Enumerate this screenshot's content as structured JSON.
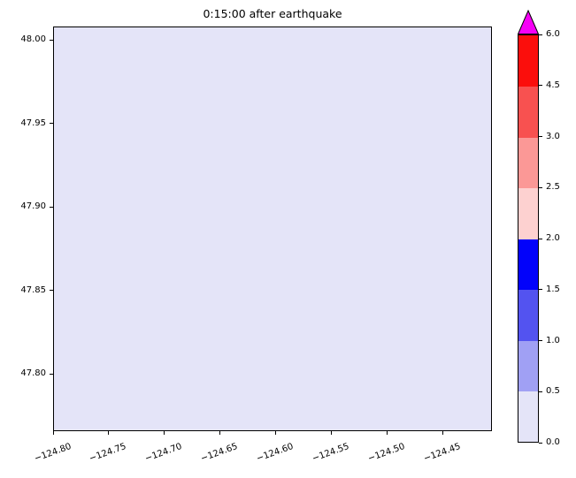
{
  "figure": {
    "title": "0:15:00 after earthquake",
    "background_color": "#ffffff"
  },
  "axes": {
    "fill_color": "#e4e4f8",
    "frame_color": "#000000",
    "x_tick_labels": [
      "−124.80",
      "−124.75",
      "−124.70",
      "−124.65",
      "−124.60",
      "−124.55",
      "−124.50",
      "−124.45"
    ],
    "y_tick_labels": [
      "48.00",
      "47.95",
      "47.90",
      "47.85",
      "47.80"
    ]
  },
  "colorbar": {
    "tick_labels_bottom_to_top": [
      "0.0",
      "0.5",
      "1.0",
      "1.5",
      "2.0",
      "2.5",
      "3.0",
      "4.5",
      "6.0"
    ],
    "segment_colors_bottom_to_top": [
      "#e4e4f8",
      "#a0a0f4",
      "#5353f0",
      "#0202fa",
      "#fdd1d0",
      "#fb9896",
      "#f85150",
      "#fb0e0c"
    ],
    "over_color": "#f600f6",
    "extend": "max"
  },
  "chart_data": {
    "type": "heatmap",
    "title": "0:15:00 after earthquake",
    "xlabel": "",
    "ylabel": "",
    "x_ticks": [
      -124.8,
      -124.75,
      -124.7,
      -124.65,
      -124.6,
      -124.55,
      -124.5,
      -124.45
    ],
    "y_ticks": [
      48.0,
      47.95,
      47.9,
      47.85,
      47.8
    ],
    "xlim": [
      -124.801,
      -124.405
    ],
    "ylim": [
      47.765,
      48.008
    ],
    "x_tick_rotation_deg": 20,
    "grid": false,
    "uniform_field_value": 0.0,
    "uniform_field_bin": [
      0.0,
      0.5
    ],
    "note": "Entire map area is a uniform field in the lowest colorbar bin (0.0–0.5), rendered pale lavender",
    "colorbar": {
      "boundaries": [
        0.0,
        0.5,
        1.0,
        1.5,
        2.0,
        2.5,
        3.0,
        4.5,
        6.0
      ],
      "colors": [
        "#e4e4f8",
        "#a0a0f4",
        "#5353f0",
        "#0202fa",
        "#fdd1d0",
        "#fb9896",
        "#f85150",
        "#fb0e0c"
      ],
      "over_color": "#f600f6",
      "extend": "max",
      "position": "right"
    }
  }
}
